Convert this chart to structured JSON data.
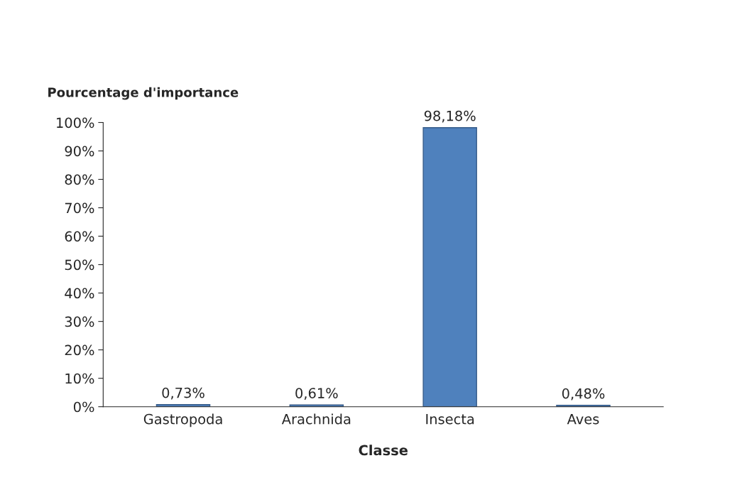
{
  "chart_data": {
    "type": "bar",
    "xlabel": "Classe",
    "ylabel": "Pourcentage d'importance",
    "categories": [
      "Gastropoda",
      "Arachnida",
      "Insecta",
      "Aves"
    ],
    "values": [
      0.73,
      0.61,
      98.18,
      0.48
    ],
    "value_labels": [
      "0,73%",
      "0,61%",
      "98,18%",
      "0,48%"
    ],
    "color": "#4f81bd",
    "ylim": [
      0,
      100
    ],
    "yticks": [
      {
        "value": 0,
        "label": "0%"
      },
      {
        "value": 10,
        "label": "10%"
      },
      {
        "value": 20,
        "label": "20%"
      },
      {
        "value": 30,
        "label": "30%"
      },
      {
        "value": 40,
        "label": "40%"
      },
      {
        "value": 50,
        "label": "50%"
      },
      {
        "value": 60,
        "label": "60%"
      },
      {
        "value": 70,
        "label": "70%"
      },
      {
        "value": 80,
        "label": "80%"
      },
      {
        "value": 90,
        "label": "90%"
      },
      {
        "value": 100,
        "label": "100%"
      }
    ]
  }
}
